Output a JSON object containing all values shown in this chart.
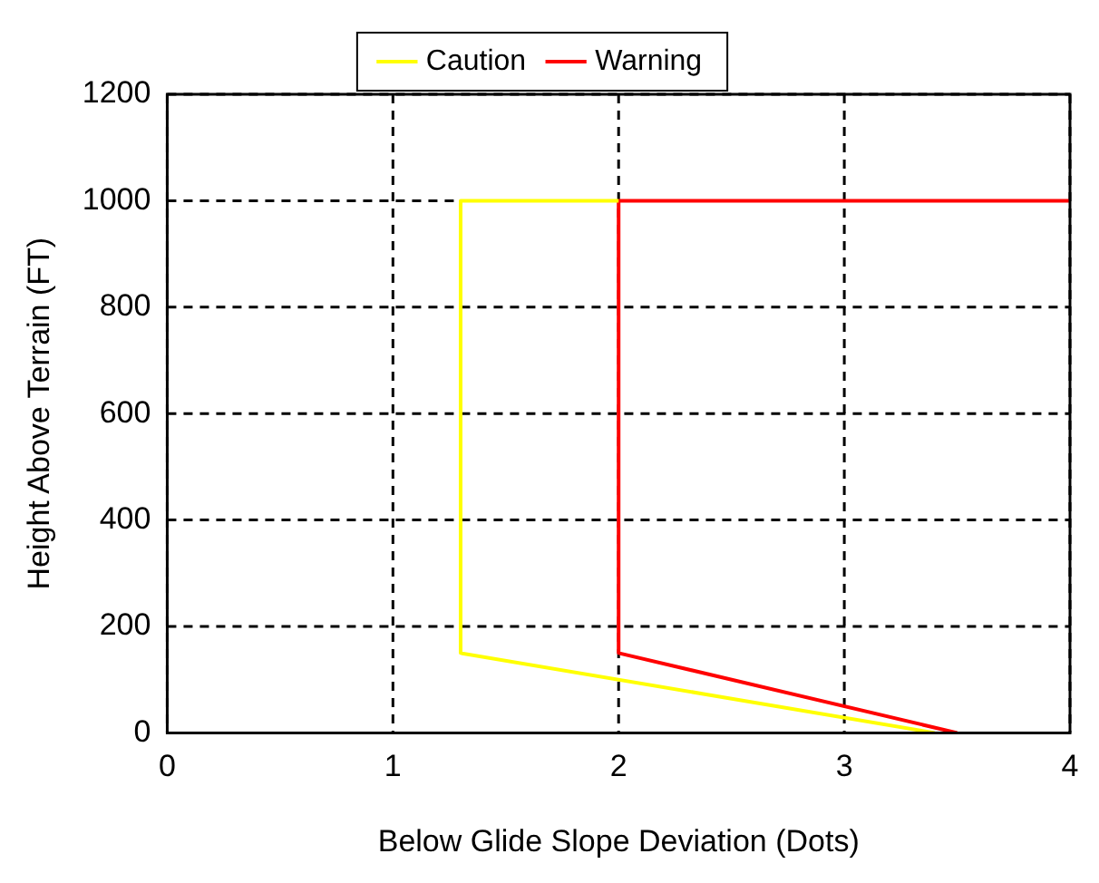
{
  "chart_data": {
    "type": "line",
    "xlabel": "Below Glide Slope Deviation (Dots)",
    "ylabel": "Height Above Terrain (FT)",
    "series": [
      {
        "name": "Caution",
        "color": "#ffff00",
        "x": [
          2,
          1.3,
          1.3,
          3.4
        ],
        "values": [
          1000,
          1000,
          150,
          0
        ]
      },
      {
        "name": "Warning",
        "color": "#ff0000",
        "x": [
          4,
          2,
          2,
          3.5
        ],
        "values": [
          1000,
          1000,
          150,
          0
        ]
      }
    ],
    "xlim": [
      0,
      4
    ],
    "xticks": [
      0,
      1,
      2,
      3,
      4
    ],
    "ylim": [
      0,
      1200
    ],
    "yticks": [
      0,
      200,
      400,
      600,
      800,
      1000,
      1200
    ],
    "grid": true,
    "legend": "top",
    "marker": "none",
    "line_style": "solid"
  }
}
